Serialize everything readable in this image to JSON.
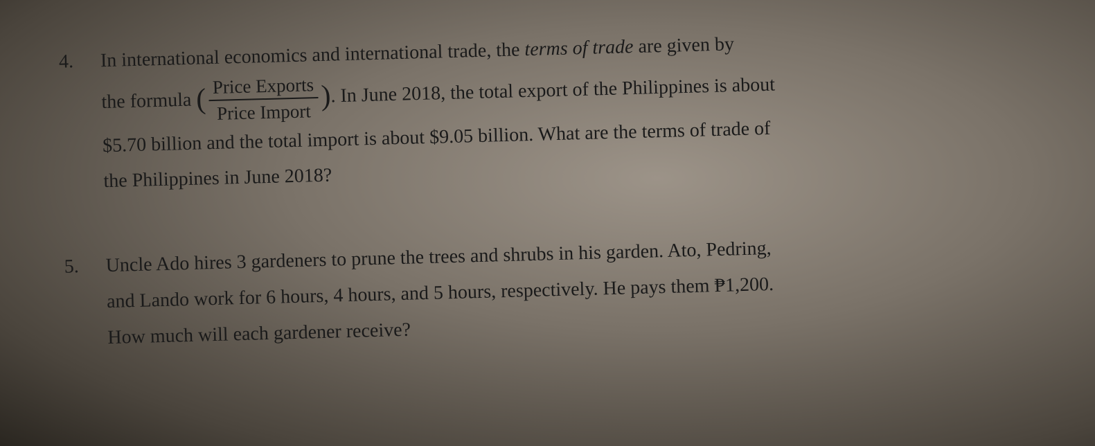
{
  "problems": [
    {
      "number": "4.",
      "line1_pre": "In international economics and international trade, the ",
      "line1_terms": "terms of trade",
      "line1_post": " are given by",
      "line2_pre": "the formula ",
      "formula_numerator": "Price Exports",
      "formula_denominator": "Price Import",
      "line2_post": ". In June 2018, the total export of the Philippines is about",
      "line3": "$5.70 billion and the total import is about $9.05 billion. What are the terms of trade of",
      "line4": "the Philippines in June 2018?"
    },
    {
      "number": "5.",
      "line1": "Uncle Ado hires 3 gardeners to prune the trees and shrubs in his garden. Ato, Pedring,",
      "line2_pre": "and Lando work for 6 hours, 4 hours, and 5 hours, respectively. He pays them ",
      "line2_currency": "₱1,200.",
      "line3": "How much will each gardener receive?"
    }
  ],
  "parentheses": {
    "open": "(",
    "close": ")"
  }
}
